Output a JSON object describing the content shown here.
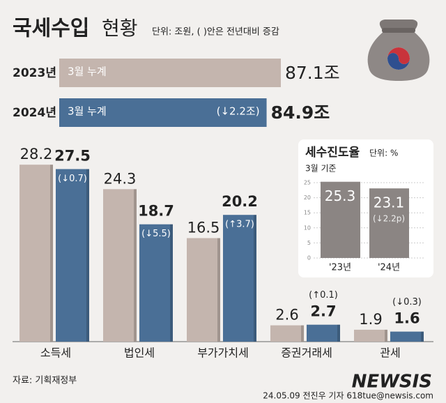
{
  "title": "국세수입",
  "subtitle": "현황",
  "unit_note": "단위: 조원, ( )안은 전년대비 증감",
  "chart_data": [
    {
      "type": "hbar",
      "categories": [
        "2023년",
        "2024년"
      ],
      "bar_labels": [
        "3월 누계",
        "3월 누계"
      ],
      "values": [
        87.1,
        84.9
      ],
      "value_labels": [
        "87.1조",
        "84.9조"
      ],
      "change_labels": [
        null,
        "(↓2.2조)"
      ],
      "colors": [
        "#c4b5ae",
        "#4a6f96"
      ]
    },
    {
      "type": "bar",
      "categories": [
        "소득세",
        "법인세",
        "부가가치세",
        "증권거래세",
        "관세"
      ],
      "series": [
        {
          "color": "#c4b5ae",
          "values": [
            28.2,
            24.3,
            16.5,
            2.6,
            1.9
          ]
        },
        {
          "color": "#4a6f96",
          "values": [
            27.5,
            18.7,
            20.2,
            2.7,
            1.6
          ],
          "change_labels": [
            "(↓0.7)",
            "(↓5.5)",
            "(↑3.7)",
            "(↑0.1)",
            "(↓0.3)"
          ]
        }
      ]
    },
    {
      "type": "bar",
      "title": "세수진도율",
      "unit_note": "단위: %",
      "subtitle": "3월 기준",
      "categories": [
        "'23년",
        "'24년"
      ],
      "values": [
        25.3,
        23.1
      ],
      "change_labels": [
        null,
        "(↓2.2p)"
      ],
      "color": "#8b8583",
      "ylim": [
        0,
        25
      ],
      "yticks": [
        0,
        5,
        10,
        15,
        20,
        25
      ],
      "grid": true
    }
  ],
  "source": "자료: 기획재정부",
  "byline": "24.05.09 전진우 기자 618tue@newsis.com",
  "logo": "NEWSIS"
}
